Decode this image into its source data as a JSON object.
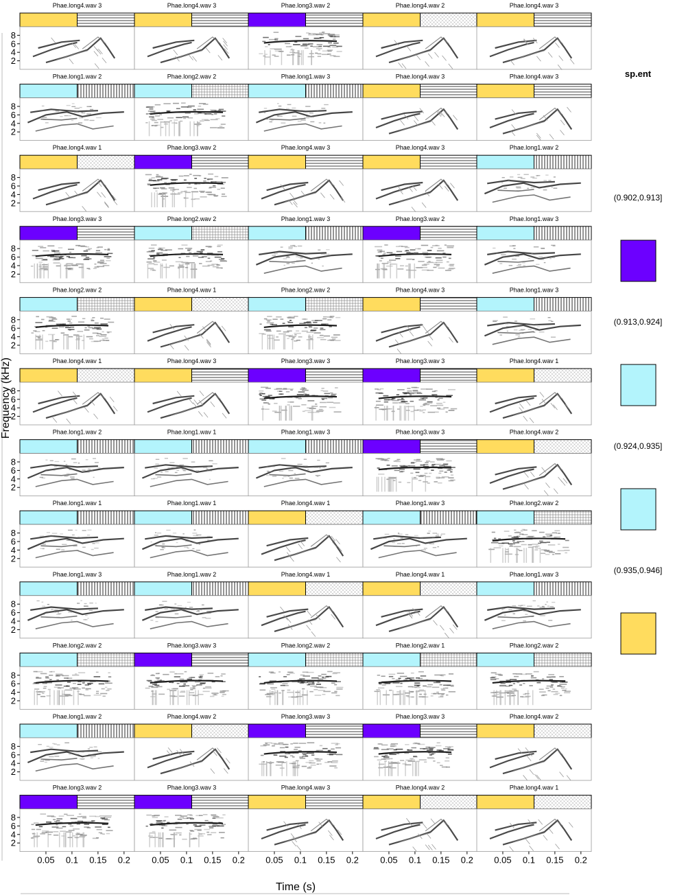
{
  "chart_data": {
    "type": "heatmap",
    "title": "",
    "xlabel": "Time (s)",
    "ylabel": "Frequency (kHz)",
    "x_ticks": [
      0.05,
      0.1,
      0.15,
      0.2
    ],
    "x_tick_labels": [
      "0.05",
      "0.1",
      "0.15",
      "0.2"
    ],
    "y_ticks": [
      2,
      4,
      6,
      8
    ],
    "y_tick_labels": [
      "2",
      "4",
      "6",
      "8"
    ],
    "xlim": [
      0,
      0.22
    ],
    "ylim": [
      0,
      10
    ],
    "grid": false,
    "layout": {
      "rows": 12,
      "cols": 5
    },
    "colors": {
      "purple": "#6c00ff",
      "cyan": "#b3f4fc",
      "yellow": "#ffdc5e"
    },
    "legend": {
      "title": "sp.ent",
      "placement": "right",
      "entries": [
        {
          "label": "(0.902,0.913]",
          "color": "#6c00ff"
        },
        {
          "label": "(0.913,0.924]",
          "color": "#b3f4fc"
        },
        {
          "label": "(0.924,0.935]",
          "color": "#b3f4fc"
        },
        {
          "label": "(0.935,0.946]",
          "color": "#ffdc5e"
        }
      ]
    },
    "panels": [
      {
        "label": "Phae.long4.wav 3",
        "color": "yellow",
        "pattern": "hlines",
        "style": "tonal"
      },
      {
        "label": "Phae.long4.wav 3",
        "color": "yellow",
        "pattern": "hlines",
        "style": "tonal"
      },
      {
        "label": "Phae.long3.wav 2",
        "color": "purple",
        "pattern": "hlines",
        "style": "dense"
      },
      {
        "label": "Phae.long4.wav 2",
        "color": "yellow",
        "pattern": "cross",
        "style": "tonal"
      },
      {
        "label": "Phae.long4.wav 3",
        "color": "yellow",
        "pattern": "hlines",
        "style": "tonal"
      },
      {
        "label": "Phae.long1.wav 2",
        "color": "cyan",
        "pattern": "vlines",
        "style": "mixed"
      },
      {
        "label": "Phae.long2.wav 2",
        "color": "cyan",
        "pattern": "grid",
        "style": "dense"
      },
      {
        "label": "Phae.long1.wav 3",
        "color": "cyan",
        "pattern": "vlines",
        "style": "mixed"
      },
      {
        "label": "Phae.long4.wav 3",
        "color": "yellow",
        "pattern": "hlines",
        "style": "tonal"
      },
      {
        "label": "Phae.long4.wav 3",
        "color": "yellow",
        "pattern": "hlines",
        "style": "tonal"
      },
      {
        "label": "Phae.long4.wav 1",
        "color": "yellow",
        "pattern": "cross",
        "style": "tonal"
      },
      {
        "label": "Phae.long3.wav 2",
        "color": "purple",
        "pattern": "hlines",
        "style": "dense"
      },
      {
        "label": "Phae.long4.wav 3",
        "color": "yellow",
        "pattern": "hlines",
        "style": "tonal"
      },
      {
        "label": "Phae.long4.wav 3",
        "color": "yellow",
        "pattern": "hlines",
        "style": "tonal"
      },
      {
        "label": "Phae.long1.wav 2",
        "color": "cyan",
        "pattern": "vlines",
        "style": "mixed"
      },
      {
        "label": "Phae.long3.wav 3",
        "color": "purple",
        "pattern": "hlines",
        "style": "dense"
      },
      {
        "label": "Phae.long2.wav 2",
        "color": "cyan",
        "pattern": "grid",
        "style": "dense"
      },
      {
        "label": "Phae.long1.wav 3",
        "color": "cyan",
        "pattern": "vlines",
        "style": "mixed"
      },
      {
        "label": "Phae.long3.wav 2",
        "color": "purple",
        "pattern": "hlines",
        "style": "dense"
      },
      {
        "label": "Phae.long1.wav 3",
        "color": "cyan",
        "pattern": "vlines",
        "style": "mixed"
      },
      {
        "label": "Phae.long2.wav 2",
        "color": "cyan",
        "pattern": "grid",
        "style": "dense"
      },
      {
        "label": "Phae.long4.wav 1",
        "color": "yellow",
        "pattern": "cross",
        "style": "tonal"
      },
      {
        "label": "Phae.long2.wav 2",
        "color": "cyan",
        "pattern": "grid",
        "style": "dense"
      },
      {
        "label": "Phae.long4.wav 3",
        "color": "yellow",
        "pattern": "hlines",
        "style": "tonal"
      },
      {
        "label": "Phae.long1.wav 3",
        "color": "cyan",
        "pattern": "vlines",
        "style": "mixed"
      },
      {
        "label": "Phae.long4.wav 1",
        "color": "yellow",
        "pattern": "cross",
        "style": "tonal"
      },
      {
        "label": "Phae.long4.wav 3",
        "color": "yellow",
        "pattern": "hlines",
        "style": "tonal"
      },
      {
        "label": "Phae.long3.wav 3",
        "color": "purple",
        "pattern": "hlines",
        "style": "dense"
      },
      {
        "label": "Phae.long3.wav 3",
        "color": "purple",
        "pattern": "hlines",
        "style": "dense"
      },
      {
        "label": "Phae.long4.wav 1",
        "color": "yellow",
        "pattern": "cross",
        "style": "tonal"
      },
      {
        "label": "Phae.long1.wav 2",
        "color": "cyan",
        "pattern": "vlines",
        "style": "mixed"
      },
      {
        "label": "Phae.long1.wav 1",
        "color": "cyan",
        "pattern": "vlines",
        "style": "mixed"
      },
      {
        "label": "Phae.long1.wav 3",
        "color": "cyan",
        "pattern": "vlines",
        "style": "mixed"
      },
      {
        "label": "Phae.long3.wav 3",
        "color": "purple",
        "pattern": "hlines",
        "style": "dense"
      },
      {
        "label": "Phae.long4.wav 2",
        "color": "yellow",
        "pattern": "cross",
        "style": "tonal"
      },
      {
        "label": "Phae.long1.wav 1",
        "color": "cyan",
        "pattern": "vlines",
        "style": "mixed"
      },
      {
        "label": "Phae.long1.wav 1",
        "color": "cyan",
        "pattern": "vlines",
        "style": "mixed"
      },
      {
        "label": "Phae.long4.wav 1",
        "color": "yellow",
        "pattern": "cross",
        "style": "tonal"
      },
      {
        "label": "Phae.long1.wav 3",
        "color": "cyan",
        "pattern": "vlines",
        "style": "mixed"
      },
      {
        "label": "Phae.long2.wav 2",
        "color": "cyan",
        "pattern": "grid",
        "style": "dense"
      },
      {
        "label": "Phae.long1.wav 3",
        "color": "cyan",
        "pattern": "vlines",
        "style": "mixed"
      },
      {
        "label": "Phae.long1.wav 2",
        "color": "cyan",
        "pattern": "vlines",
        "style": "mixed"
      },
      {
        "label": "Phae.long4.wav 1",
        "color": "yellow",
        "pattern": "cross",
        "style": "tonal"
      },
      {
        "label": "Phae.long4.wav 1",
        "color": "yellow",
        "pattern": "cross",
        "style": "tonal"
      },
      {
        "label": "Phae.long1.wav 3",
        "color": "cyan",
        "pattern": "vlines",
        "style": "mixed"
      },
      {
        "label": "Phae.long2.wav 2",
        "color": "cyan",
        "pattern": "grid",
        "style": "dense"
      },
      {
        "label": "Phae.long3.wav 3",
        "color": "purple",
        "pattern": "hlines",
        "style": "dense"
      },
      {
        "label": "Phae.long2.wav 2",
        "color": "cyan",
        "pattern": "grid",
        "style": "dense"
      },
      {
        "label": "Phae.long2.wav 1",
        "color": "cyan",
        "pattern": "grid",
        "style": "dense"
      },
      {
        "label": "Phae.long2.wav 2",
        "color": "cyan",
        "pattern": "grid",
        "style": "dense"
      },
      {
        "label": "Phae.long1.wav 2",
        "color": "cyan",
        "pattern": "vlines",
        "style": "mixed"
      },
      {
        "label": "Phae.long4.wav 2",
        "color": "yellow",
        "pattern": "cross",
        "style": "tonal"
      },
      {
        "label": "Phae.long3.wav 3",
        "color": "purple",
        "pattern": "hlines",
        "style": "dense"
      },
      {
        "label": "Phae.long3.wav 3",
        "color": "purple",
        "pattern": "hlines",
        "style": "dense"
      },
      {
        "label": "Phae.long4.wav 2",
        "color": "yellow",
        "pattern": "cross",
        "style": "tonal"
      },
      {
        "label": "Phae.long3.wav 2",
        "color": "purple",
        "pattern": "hlines",
        "style": "dense"
      },
      {
        "label": "Phae.long3.wav 3",
        "color": "purple",
        "pattern": "hlines",
        "style": "dense"
      },
      {
        "label": "Phae.long4.wav 3",
        "color": "yellow",
        "pattern": "hlines",
        "style": "tonal"
      },
      {
        "label": "Phae.long4.wav 2",
        "color": "yellow",
        "pattern": "cross",
        "style": "tonal"
      },
      {
        "label": "Phae.long4.wav 1",
        "color": "yellow",
        "pattern": "cross",
        "style": "tonal"
      }
    ]
  }
}
